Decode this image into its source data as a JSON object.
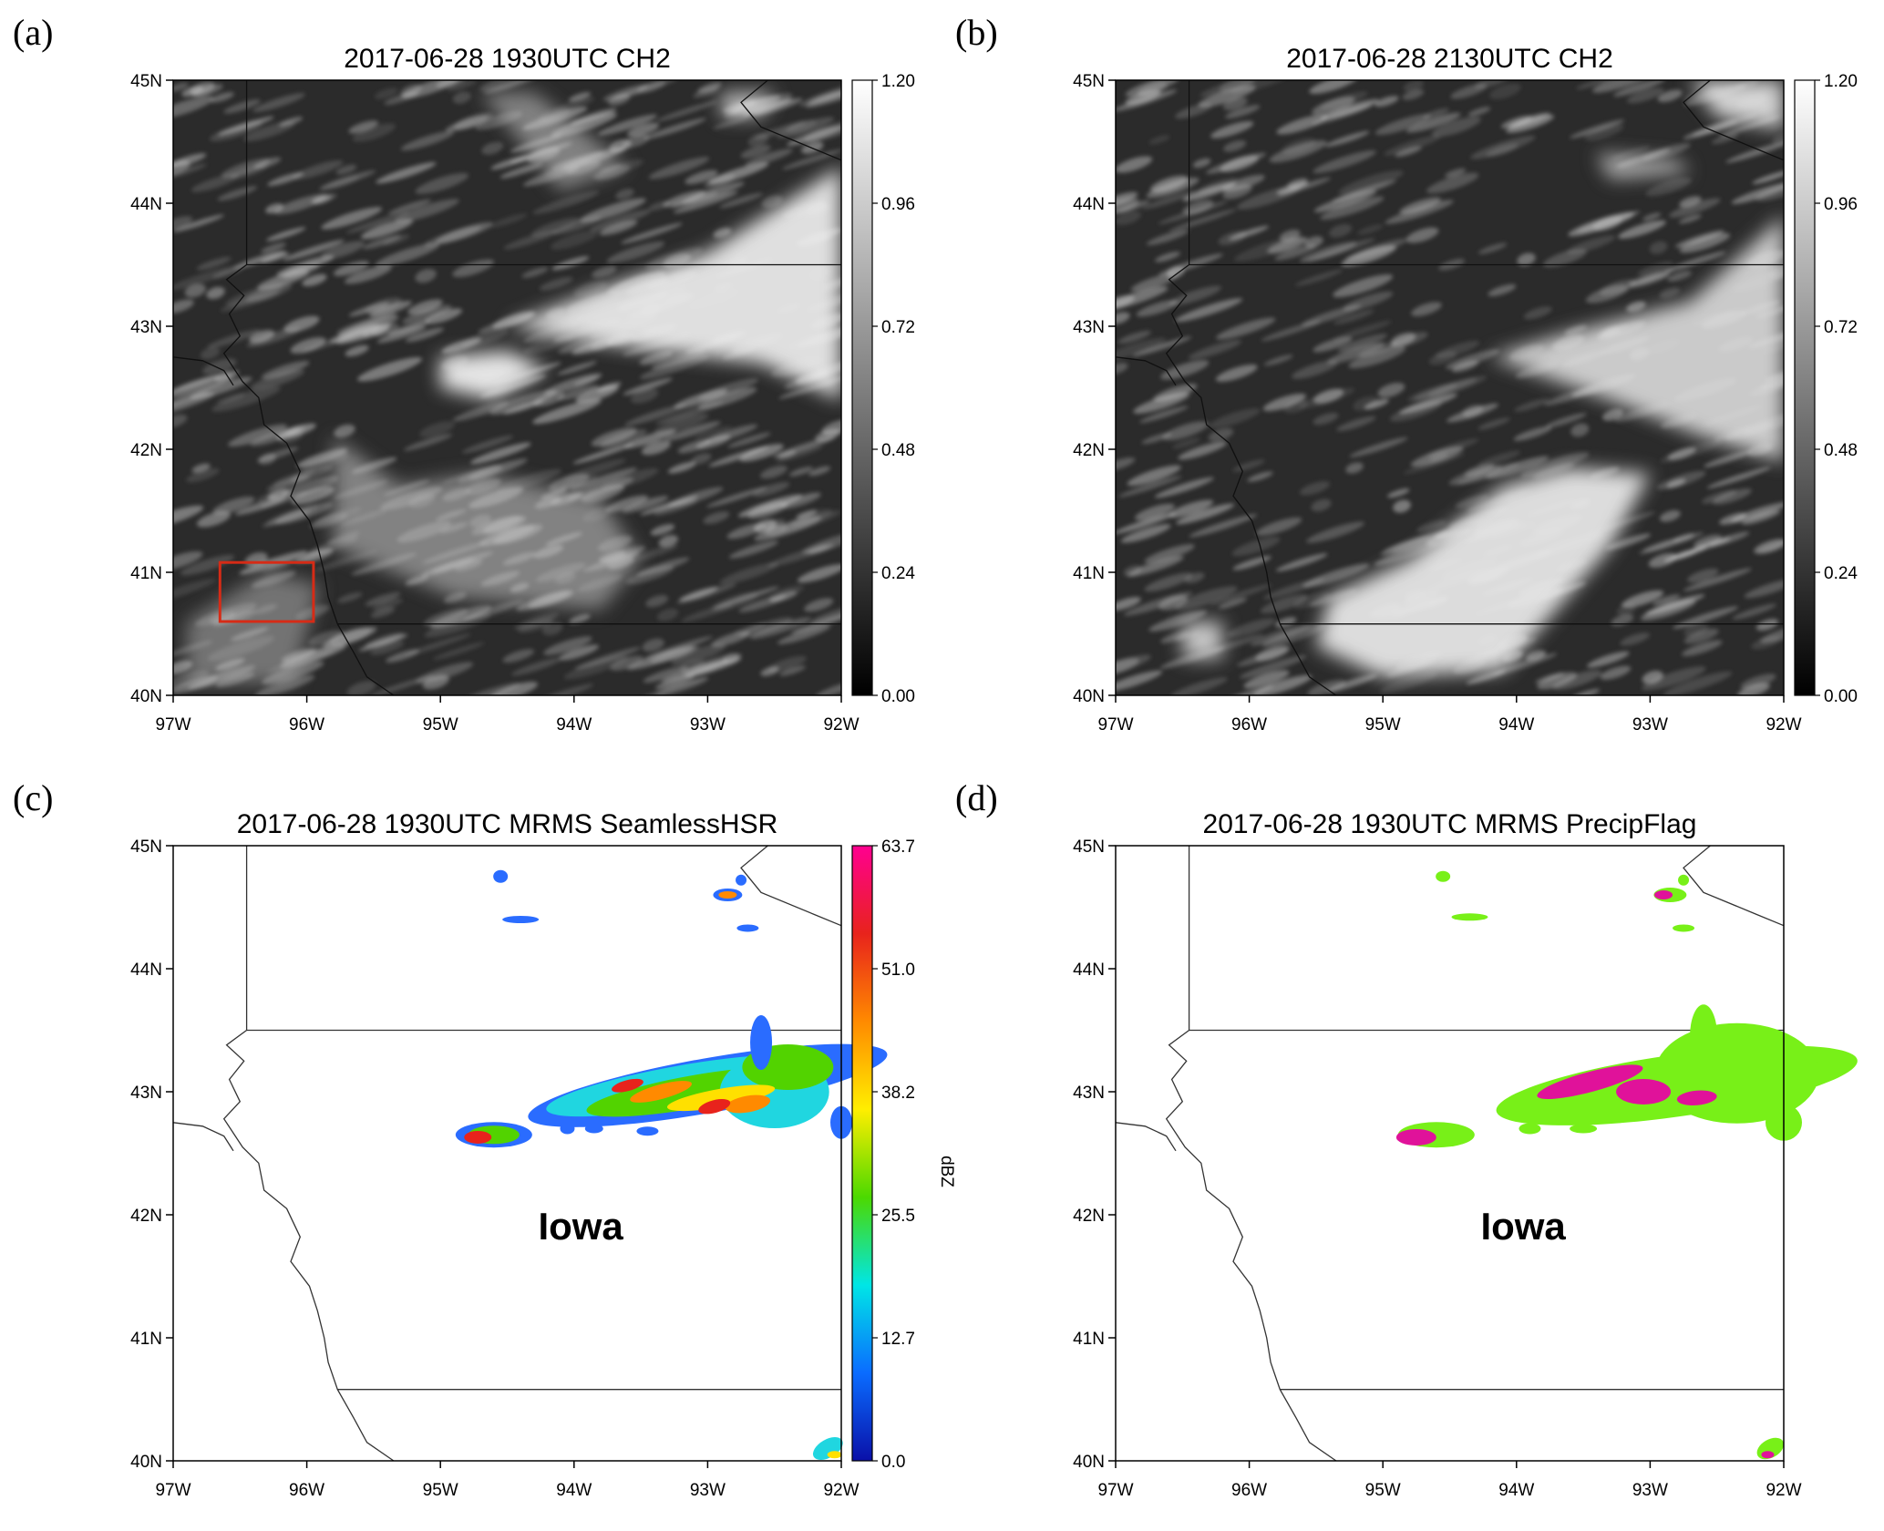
{
  "panels": [
    {
      "id": "a",
      "letter": "(a)",
      "title": "2017-06-28 1930UTC CH2",
      "kind": "satellite",
      "colorbar": {
        "ticks": [
          "1.20",
          "0.96",
          "0.72",
          "0.48",
          "0.24",
          "0.00"
        ],
        "unit": "",
        "colors": [
          "#ffffff",
          "#000000"
        ]
      },
      "lat_labels": [
        "45N",
        "44N",
        "43N",
        "42N",
        "41N",
        "40N"
      ],
      "lon_labels": [
        "97W",
        "96W",
        "95W",
        "94W",
        "93W",
        "92W"
      ],
      "state_label": "",
      "highlight_box_color": "#d62b16"
    },
    {
      "id": "b",
      "letter": "(b)",
      "title": "2017-06-28 2130UTC CH2",
      "kind": "satellite",
      "colorbar": {
        "ticks": [
          "1.20",
          "0.96",
          "0.72",
          "0.48",
          "0.24",
          "0.00"
        ],
        "unit": "",
        "colors": [
          "#ffffff",
          "#000000"
        ]
      },
      "lat_labels": [
        "45N",
        "44N",
        "43N",
        "42N",
        "41N",
        "40N"
      ],
      "lon_labels": [
        "97W",
        "96W",
        "95W",
        "94W",
        "93W",
        "92W"
      ],
      "state_label": ""
    },
    {
      "id": "c",
      "letter": "(c)",
      "title": "2017-06-28 1930UTC MRMS SeamlessHSR",
      "kind": "radar",
      "colorbar": {
        "ticks": [
          "63.7",
          "51.0",
          "38.2",
          "25.5",
          "12.7",
          "0.0"
        ],
        "unit": "dBZ",
        "colors": [
          "#ff0090",
          "#e8231c",
          "#ff8a00",
          "#ffee00",
          "#4cd900",
          "#00e6e6",
          "#0a6cff",
          "#0a10a8"
        ]
      },
      "lat_labels": [
        "45N",
        "44N",
        "43N",
        "42N",
        "41N",
        "40N"
      ],
      "lon_labels": [
        "97W",
        "96W",
        "95W",
        "94W",
        "93W",
        "92W"
      ],
      "state_label": "Iowa"
    },
    {
      "id": "d",
      "letter": "(d)",
      "title": "2017-06-28 1930UTC MRMS PrecipFlag",
      "kind": "flag",
      "colorbar": null,
      "lat_labels": [
        "45N",
        "44N",
        "43N",
        "42N",
        "41N",
        "40N"
      ],
      "lon_labels": [
        "97W",
        "96W",
        "95W",
        "94W",
        "93W",
        "92W"
      ],
      "state_label": "Iowa",
      "flag_colors": {
        "rain": "#78f018",
        "convective": "#e0129a"
      }
    }
  ]
}
